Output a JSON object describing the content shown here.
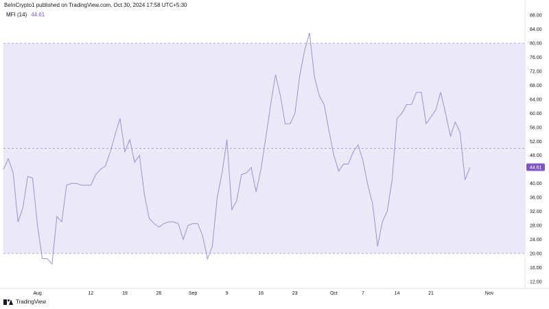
{
  "header": {
    "text": "BeInCrypto1 published on TradingView.com, Oct 30, 2024 17:58 UTC+5:30"
  },
  "indicator": {
    "name": "MFI (14)",
    "value": "44.61"
  },
  "footer": {
    "brand": "TradingView"
  },
  "colors": {
    "line": "#9c8fd4",
    "band_fill": "#ede8f8",
    "band_border": "#9b8fc9",
    "badge": "#7e57c2"
  },
  "chart_data": {
    "type": "line",
    "title": "",
    "series": [
      {
        "name": "MFI (14)",
        "values": [
          44.0,
          47.0,
          43.0,
          29.0,
          33.0,
          42.0,
          41.5,
          28.0,
          18.5,
          18.5,
          17.0,
          30.5,
          29.0,
          39.5,
          40.0,
          40.0,
          39.5,
          39.5,
          39.5,
          42.5,
          44.0,
          45.0,
          49.0,
          54.0,
          58.5,
          49.0,
          52.5,
          46.0,
          48.0,
          37.0,
          30.0,
          28.5,
          27.5,
          28.5,
          29.0,
          29.0,
          28.5,
          24.0,
          28.0,
          28.5,
          28.5,
          25.0,
          18.5,
          22.0,
          36.0,
          43.0,
          52.5,
          32.5,
          35.0,
          42.5,
          43.0,
          44.5,
          37.5,
          44.0,
          53.0,
          62.5,
          71.0,
          65.0,
          57.0,
          57.0,
          60.0,
          71.0,
          78.0,
          83.0,
          70.5,
          65.0,
          62.5,
          55.0,
          48.0,
          43.5,
          45.5,
          45.5,
          49.0,
          51.0,
          46.5,
          39.5,
          34.0,
          22.0,
          29.0,
          32.0,
          41.0,
          58.5,
          60.0,
          62.5,
          62.5,
          66.0,
          66.0,
          57.0,
          59.0,
          61.0,
          66.0,
          60.0,
          53.5,
          57.5,
          54.5,
          41.0,
          44.5
        ]
      }
    ],
    "last_value": 44.61,
    "upper_band": 80,
    "middle_band": 50,
    "lower_band": 20,
    "ylim": [
      10,
      90
    ],
    "y_ticks": [
      "12.00",
      "16.00",
      "20.00",
      "24.00",
      "28.00",
      "32.00",
      "36.00",
      "40.00",
      "44.00",
      "48.00",
      "52.00",
      "56.00",
      "60.00",
      "64.00",
      "68.00",
      "72.00",
      "76.00",
      "80.00",
      "84.00",
      "88.00"
    ],
    "x_ticks": [
      {
        "label": "Aug",
        "index": 7
      },
      {
        "label": "12",
        "index": 18
      },
      {
        "label": "19",
        "index": 25
      },
      {
        "label": "26",
        "index": 32
      },
      {
        "label": "Sep",
        "index": 39
      },
      {
        "label": "9",
        "index": 46
      },
      {
        "label": "16",
        "index": 53
      },
      {
        "label": "23",
        "index": 60
      },
      {
        "label": "Oct",
        "index": 68
      },
      {
        "label": "7",
        "index": 74
      },
      {
        "label": "14",
        "index": 81
      },
      {
        "label": "21",
        "index": 88
      },
      {
        "label": "Nov",
        "index": 100
      }
    ],
    "grid": false,
    "legend": "top-left"
  }
}
